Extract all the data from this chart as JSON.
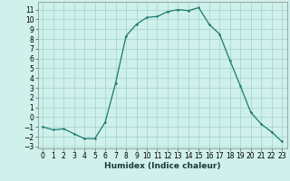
{
  "x": [
    0,
    1,
    2,
    3,
    4,
    5,
    6,
    7,
    8,
    9,
    10,
    11,
    12,
    13,
    14,
    15,
    16,
    17,
    18,
    19,
    20,
    21,
    22,
    23
  ],
  "y": [
    -1,
    -1.3,
    -1.2,
    -1.7,
    -2.2,
    -2.2,
    -0.5,
    3.5,
    8.3,
    9.5,
    10.2,
    10.3,
    10.8,
    11.0,
    10.9,
    11.2,
    9.5,
    8.5,
    5.8,
    3.2,
    0.5,
    -0.7,
    -1.5,
    -2.5
  ],
  "line_color": "#1a7a6e",
  "bg_color": "#cff0eb",
  "grid_color": "#a8d8d0",
  "xlabel": "Humidex (Indice chaleur)",
  "xlim": [
    -0.5,
    23.5
  ],
  "ylim": [
    -3.2,
    11.8
  ],
  "yticks": [
    -3,
    -2,
    -1,
    0,
    1,
    2,
    3,
    4,
    5,
    6,
    7,
    8,
    9,
    10,
    11
  ],
  "xticks": [
    0,
    1,
    2,
    3,
    4,
    5,
    6,
    7,
    8,
    9,
    10,
    11,
    12,
    13,
    14,
    15,
    16,
    17,
    18,
    19,
    20,
    21,
    22,
    23
  ],
  "tick_fontsize": 5.5,
  "xlabel_fontsize": 6.5
}
